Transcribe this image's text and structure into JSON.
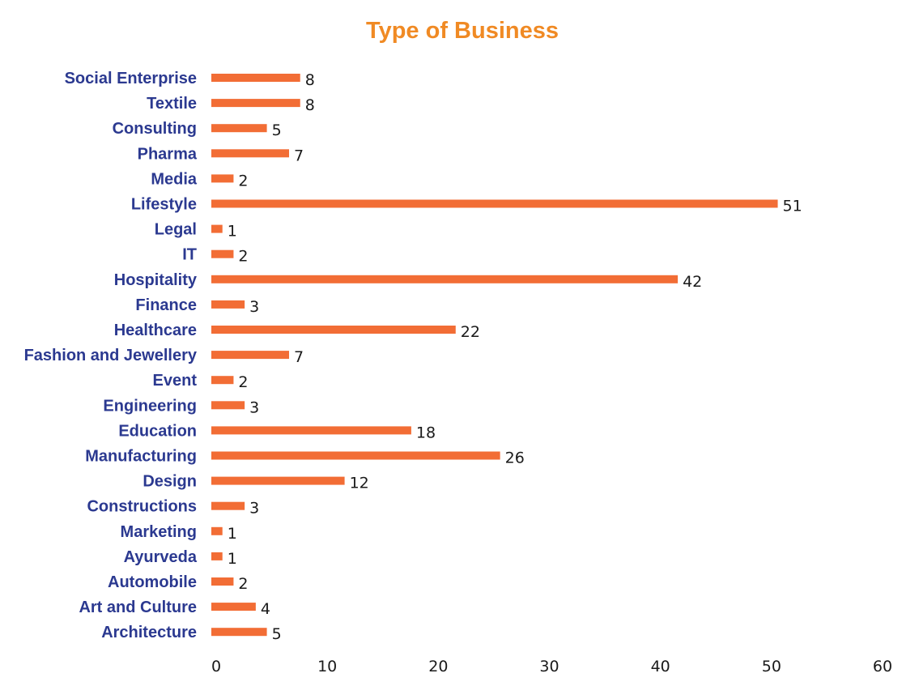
{
  "chart_data": {
    "type": "bar",
    "orientation": "horizontal",
    "title": "Type of Business",
    "categories": [
      "Social Enterprise",
      "Textile",
      "Consulting",
      "Pharma",
      "Media",
      "Lifestyle",
      "Legal",
      "IT",
      "Hospitality",
      "Finance",
      "Healthcare",
      "Fashion and Jewellery",
      "Event",
      "Engineering",
      "Education",
      "Manufacturing",
      "Design",
      "Constructions",
      "Marketing",
      "Ayurveda",
      "Automobile",
      "Art and Culture",
      "Architecture"
    ],
    "values": [
      8,
      8,
      5,
      7,
      2,
      51,
      1,
      2,
      42,
      3,
      22,
      7,
      2,
      3,
      18,
      26,
      12,
      3,
      1,
      1,
      2,
      4,
      5
    ],
    "xlim": [
      0,
      60
    ],
    "xticks": [
      0,
      10,
      20,
      30,
      40,
      50,
      60
    ],
    "xlabel": "",
    "ylabel": "",
    "grid": false,
    "legend": "none",
    "colors": {
      "bar": "#f26d35",
      "title": "#f08a24",
      "category_label": "#2b3990",
      "value_label": "#1a1a1a"
    }
  }
}
